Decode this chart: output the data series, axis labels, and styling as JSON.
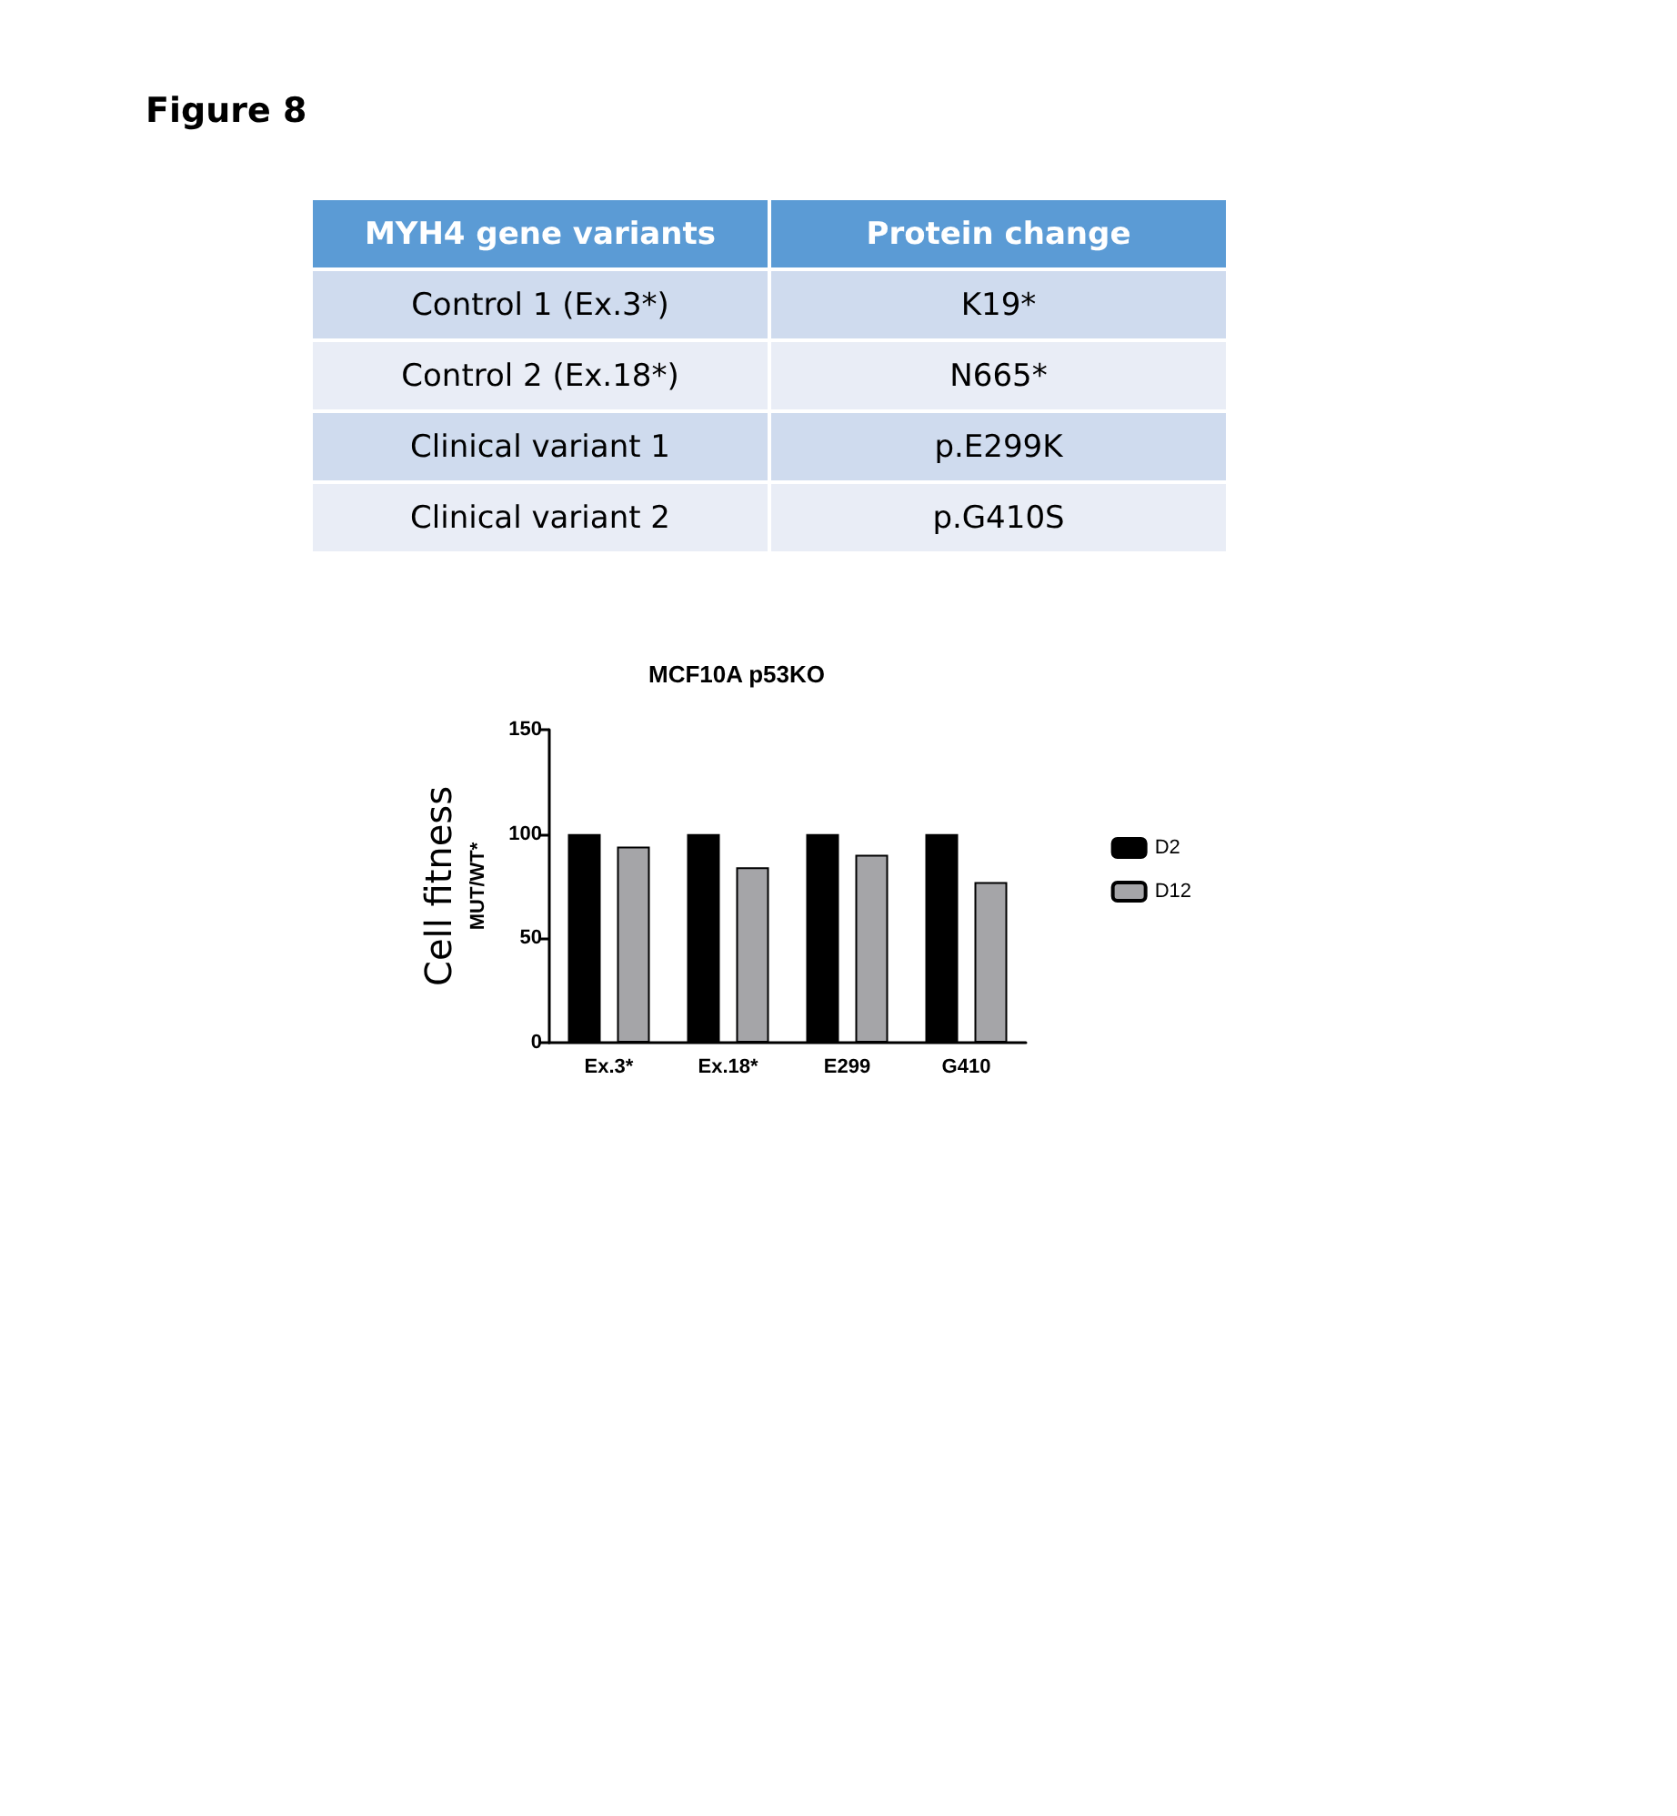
{
  "chart_data": [
    {
      "type": "other",
      "title": "Figure 8",
      "annotations": [
        "MYH4 gene variants",
        "Protein change",
        "Control 1 (Ex.3*)",
        "K19*",
        "Control 2 (Ex.18*)",
        "N665*",
        "Clinical variant 1",
        "p.E299K",
        "Clinical variant 2",
        "p.G410S"
      ]
    },
    {
      "type": "bar",
      "title": "MCF10A p53KO",
      "ylabel": "Cell fitness\nMUT/WT*",
      "categories": [
        "Ex.3*",
        "Ex.18*",
        "E299",
        "G410"
      ],
      "series": [
        {
          "name": "D2",
          "color": "#000000",
          "values": [
            100,
            100,
            100,
            100
          ]
        },
        {
          "name": "D12",
          "color": "#a5a5a8",
          "values": [
            94,
            84,
            90,
            77
          ]
        }
      ],
      "ylim": [
        0,
        150
      ],
      "yticks": [
        0,
        50,
        100,
        150
      ],
      "grid": false,
      "legend": "right"
    }
  ]
}
